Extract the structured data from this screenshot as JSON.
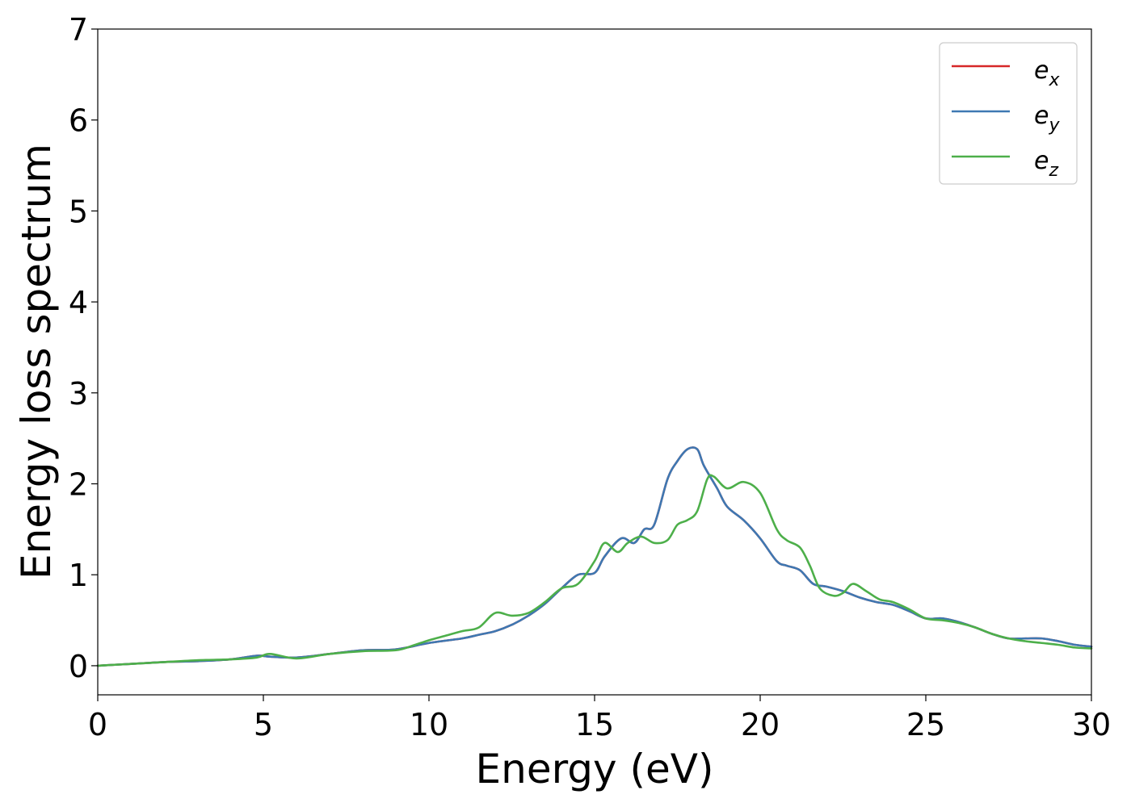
{
  "chart_data": {
    "type": "line",
    "title": "",
    "xlabel": "Energy (eV)",
    "ylabel": "Energy loss spectrum",
    "xlim": [
      0,
      30
    ],
    "ylim": [
      -0.32,
      7.0
    ],
    "xticks": [
      0,
      5,
      10,
      15,
      20,
      25,
      30
    ],
    "yticks": [
      0,
      1,
      2,
      3,
      4,
      5,
      6,
      7
    ],
    "xtick_labels": [
      "0",
      "5",
      "10",
      "15",
      "20",
      "25",
      "30"
    ],
    "ytick_labels": [
      "0",
      "1",
      "2",
      "3",
      "4",
      "5",
      "6",
      "7"
    ],
    "grid": false,
    "legend_position": "top-right",
    "series": [
      {
        "name": "e",
        "subscript": "x",
        "color": "#d62728",
        "x": [
          0,
          1,
          2,
          3,
          4,
          4.8,
          5.2,
          6,
          7,
          8,
          9,
          10,
          11,
          11.5,
          12,
          12.5,
          13,
          13.5,
          14,
          14.5,
          15,
          15.3,
          15.8,
          16.2,
          16.5,
          16.8,
          17.2,
          17.5,
          17.8,
          18.1,
          18.3,
          18.7,
          19,
          19.5,
          20,
          20.5,
          20.8,
          21.2,
          21.6,
          22,
          22.5,
          23,
          23.5,
          24,
          24.5,
          25,
          25.5,
          26,
          26.5,
          27,
          27.5,
          28,
          28.5,
          29,
          29.5,
          30
        ],
        "y": [
          0.0,
          0.02,
          0.04,
          0.05,
          0.07,
          0.11,
          0.1,
          0.09,
          0.13,
          0.17,
          0.18,
          0.25,
          0.3,
          0.34,
          0.38,
          0.45,
          0.55,
          0.68,
          0.85,
          1.0,
          1.02,
          1.2,
          1.4,
          1.35,
          1.5,
          1.55,
          2.05,
          2.25,
          2.38,
          2.38,
          2.2,
          1.95,
          1.75,
          1.6,
          1.4,
          1.15,
          1.1,
          1.05,
          0.9,
          0.87,
          0.82,
          0.75,
          0.7,
          0.67,
          0.6,
          0.52,
          0.52,
          0.48,
          0.42,
          0.35,
          0.3,
          0.3,
          0.3,
          0.27,
          0.23,
          0.21
        ]
      },
      {
        "name": "e",
        "subscript": "y",
        "color": "#3e78b2",
        "x": [
          0,
          1,
          2,
          3,
          4,
          4.8,
          5.2,
          6,
          7,
          8,
          9,
          10,
          11,
          11.5,
          12,
          12.5,
          13,
          13.5,
          14,
          14.5,
          15,
          15.3,
          15.8,
          16.2,
          16.5,
          16.8,
          17.2,
          17.5,
          17.8,
          18.1,
          18.3,
          18.7,
          19,
          19.5,
          20,
          20.5,
          20.8,
          21.2,
          21.6,
          22,
          22.5,
          23,
          23.5,
          24,
          24.5,
          25,
          25.5,
          26,
          26.5,
          27,
          27.5,
          28,
          28.5,
          29,
          29.5,
          30
        ],
        "y": [
          0.0,
          0.02,
          0.04,
          0.05,
          0.07,
          0.11,
          0.1,
          0.09,
          0.13,
          0.17,
          0.18,
          0.25,
          0.3,
          0.34,
          0.38,
          0.45,
          0.55,
          0.68,
          0.85,
          1.0,
          1.02,
          1.2,
          1.4,
          1.35,
          1.5,
          1.55,
          2.05,
          2.25,
          2.38,
          2.38,
          2.2,
          1.95,
          1.75,
          1.6,
          1.4,
          1.15,
          1.1,
          1.05,
          0.9,
          0.87,
          0.82,
          0.75,
          0.7,
          0.67,
          0.6,
          0.52,
          0.52,
          0.48,
          0.42,
          0.35,
          0.3,
          0.3,
          0.3,
          0.27,
          0.23,
          0.21
        ]
      },
      {
        "name": "e",
        "subscript": "z",
        "color": "#4daf4a",
        "x": [
          0,
          1,
          2,
          3,
          4,
          4.8,
          5.2,
          6,
          7,
          8,
          9,
          9.5,
          10,
          10.5,
          11,
          11.5,
          12,
          12.5,
          13,
          13.5,
          14,
          14.5,
          15,
          15.3,
          15.7,
          16,
          16.4,
          16.8,
          17.2,
          17.5,
          17.8,
          18.1,
          18.4,
          18.6,
          19,
          19.5,
          20,
          20.5,
          20.8,
          21.2,
          21.5,
          21.8,
          22.2,
          22.5,
          22.8,
          23.2,
          23.6,
          24,
          24.5,
          25,
          25.5,
          26,
          26.5,
          27,
          27.5,
          28,
          28.5,
          29,
          29.5,
          30
        ],
        "y": [
          0.0,
          0.02,
          0.04,
          0.06,
          0.07,
          0.09,
          0.13,
          0.08,
          0.13,
          0.16,
          0.17,
          0.22,
          0.28,
          0.33,
          0.38,
          0.42,
          0.58,
          0.55,
          0.58,
          0.7,
          0.85,
          0.9,
          1.15,
          1.35,
          1.25,
          1.35,
          1.42,
          1.35,
          1.38,
          1.55,
          1.6,
          1.7,
          2.05,
          2.08,
          1.95,
          2.02,
          1.9,
          1.5,
          1.38,
          1.3,
          1.1,
          0.85,
          0.77,
          0.8,
          0.9,
          0.82,
          0.73,
          0.7,
          0.62,
          0.52,
          0.5,
          0.47,
          0.42,
          0.35,
          0.3,
          0.27,
          0.25,
          0.23,
          0.2,
          0.19
        ]
      }
    ]
  }
}
